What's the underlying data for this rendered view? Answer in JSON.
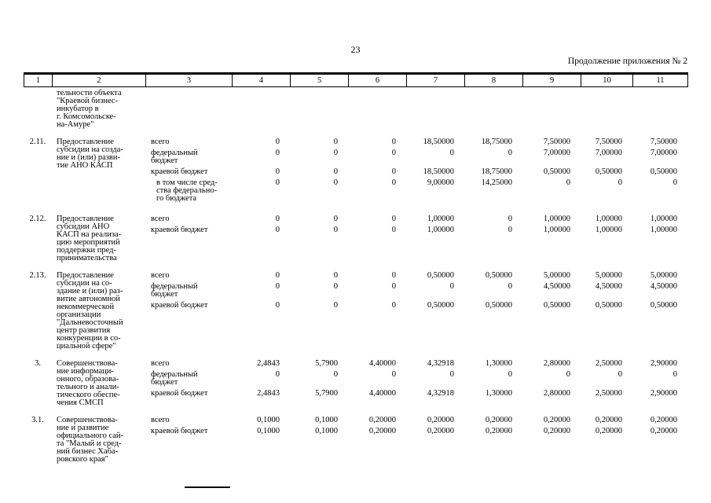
{
  "page": {
    "number": "23",
    "appendix_note": "Продолжение приложения № 2"
  },
  "table": {
    "column_headers": [
      "1",
      "2",
      "3",
      "4",
      "5",
      "6",
      "7",
      "8",
      "9",
      "10",
      "11"
    ],
    "rows": [
      {
        "num": "",
        "title_lines": [
          "тельности объекта",
          "\"Краевой бизнес-",
          "инкубатор в",
          "г. Комсомольске-",
          "на-Амуре\""
        ],
        "sublines": []
      },
      {
        "num": "2.11.",
        "title_lines": [
          "Предоставление",
          "субсидии на созда-",
          "ние и (или) разви-",
          "тие АНО КАСП"
        ],
        "sublines": [
          {
            "label_lines": [
              "всего"
            ],
            "values": [
              "0",
              "0",
              "0",
              "18,50000",
              "18,75000",
              "7,50000",
              "7,50000",
              "7,50000"
            ]
          },
          {
            "label_lines": [
              "федеральный",
              "бюджет"
            ],
            "values": [
              "0",
              "0",
              "0",
              "0",
              "0",
              "7,00000",
              "7,00000",
              "7,00000"
            ]
          },
          {
            "label_lines": [
              "краевой бюджет"
            ],
            "values": [
              "0",
              "0",
              "0",
              "18,50000",
              "18,75000",
              "0,50000",
              "0,50000",
              "0,50000"
            ]
          },
          {
            "label_lines": [
              "в том числе сред-",
              "ства федерально-",
              "го бюджета"
            ],
            "indent": true,
            "values": [
              "0",
              "0",
              "0",
              "9,00000",
              "14,25000",
              "0",
              "0",
              "0"
            ]
          }
        ]
      },
      {
        "num": "2.12.",
        "title_lines": [
          "Предоставление",
          "субсидии АНО",
          "КАСП на реализа-",
          "цию мероприятий",
          "поддержки пред-",
          "принимательства"
        ],
        "sublines": [
          {
            "label_lines": [
              "всего"
            ],
            "values": [
              "0",
              "0",
              "0",
              "1,00000",
              "0",
              "1,00000",
              "1,00000",
              "1,00000"
            ]
          },
          {
            "label_lines": [
              "краевой бюджет"
            ],
            "values": [
              "0",
              "0",
              "0",
              "1,00000",
              "0",
              "1,00000",
              "1,00000",
              "1,00000"
            ]
          }
        ]
      },
      {
        "num": "2.13.",
        "title_lines": [
          "Предоставление",
          "субсидии на со-",
          "здание и (или) раз-",
          "витие автономной",
          "некоммерческой",
          "организации",
          "\"Дальневосточный",
          "центр развития",
          "конкуренции в со-",
          "циальной сфере\""
        ],
        "sublines": [
          {
            "label_lines": [
              "всего"
            ],
            "values": [
              "0",
              "0",
              "0",
              "0,50000",
              "0,50000",
              "5,00000",
              "5,00000",
              "5,00000"
            ]
          },
          {
            "label_lines": [
              "федеральный",
              "бюджет"
            ],
            "values": [
              "0",
              "0",
              "0",
              "0",
              "0",
              "4,50000",
              "4,50000",
              "4,50000"
            ]
          },
          {
            "label_lines": [
              "краевой бюджет"
            ],
            "values": [
              "0",
              "0",
              "0",
              "0,50000",
              "0,50000",
              "0,50000",
              "0,50000",
              "0,50000"
            ]
          }
        ]
      },
      {
        "num": "3.",
        "title_lines": [
          "Совершенствова-",
          "ние информаци-",
          "онного, образова-",
          "тельного и анали-",
          "тического обеспе-",
          "чения СМСП"
        ],
        "sublines": [
          {
            "label_lines": [
              "всего"
            ],
            "values": [
              "2,4843",
              "5,7900",
              "4,40000",
              "4,32918",
              "1,30000",
              "2,80000",
              "2,50000",
              "2,90000"
            ]
          },
          {
            "label_lines": [
              "федеральный",
              "бюджет"
            ],
            "values": [
              "0",
              "0",
              "0",
              "0",
              "0",
              "0",
              "0",
              "0"
            ]
          },
          {
            "label_lines": [
              "краевой бюджет"
            ],
            "values": [
              "2,4843",
              "5,7900",
              "4,40000",
              "4,32918",
              "1,30000",
              "2,80000",
              "2,50000",
              "2,90000"
            ]
          }
        ]
      },
      {
        "num": "3.1.",
        "title_lines": [
          "Совершенствова-",
          "ние и развитие",
          "официального сай-",
          "та \"Малый и сред-",
          "ний бизнес Хаба-",
          "ровского края\""
        ],
        "sublines": [
          {
            "label_lines": [
              "всего"
            ],
            "values": [
              "0,1000",
              "0,1000",
              "0,20000",
              "0,20000",
              "0,20000",
              "0,20000",
              "0,20000",
              "0,20000"
            ]
          },
          {
            "label_lines": [
              "краевой бюджет"
            ],
            "values": [
              "0,1000",
              "0,1000",
              "0,20000",
              "0,20000",
              "0,20000",
              "0,20000",
              "0,20000",
              "0,20000"
            ]
          }
        ]
      }
    ]
  }
}
